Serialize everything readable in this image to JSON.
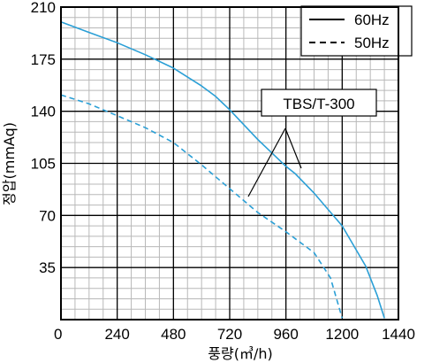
{
  "chart_data": {
    "type": "line",
    "xlabel": "풍량(㎥/h)",
    "ylabel": "정압(mmAq)",
    "xlim": [
      0,
      1440
    ],
    "ylim": [
      0,
      210
    ],
    "x_ticks": [
      "0",
      "240",
      "480",
      "720",
      "960",
      "1200",
      "1440"
    ],
    "y_ticks": [
      "0",
      "35",
      "70",
      "105",
      "140",
      "175",
      "210"
    ],
    "grid": true,
    "legend_position": "top-right",
    "series": [
      {
        "name": "60Hz",
        "line_style": "solid",
        "color": "#2a9fd6",
        "x": [
          0,
          120,
          240,
          360,
          480,
          600,
          660,
          720,
          840,
          960,
          1000,
          1080,
          1200,
          1300,
          1350,
          1380
        ],
        "y": [
          200,
          193,
          186,
          178,
          169,
          157,
          150,
          141,
          121,
          103,
          98,
          85,
          63,
          36,
          16,
          1
        ]
      },
      {
        "name": "50Hz",
        "line_style": "dashed",
        "color": "#2a9fd6",
        "x": [
          0,
          120,
          240,
          360,
          480,
          600,
          720,
          840,
          960,
          1080,
          1150,
          1200
        ],
        "y": [
          151,
          145,
          137,
          129,
          119,
          104,
          88,
          72,
          59,
          45,
          28,
          1
        ]
      }
    ],
    "annotations": [
      {
        "text": "TBS/T-300"
      }
    ]
  }
}
